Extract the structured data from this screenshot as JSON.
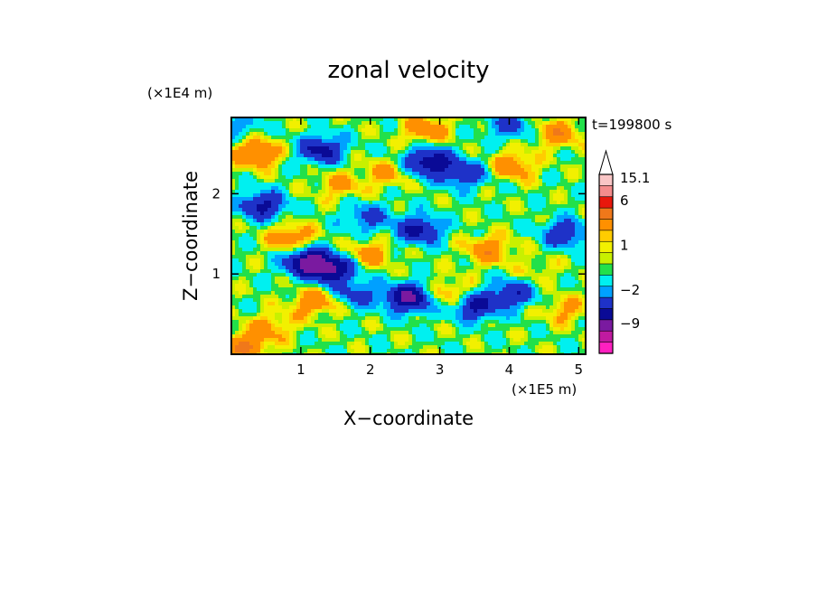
{
  "chart_data": {
    "type": "heatmap",
    "title": "zonal velocity",
    "xlabel": "X−coordinate",
    "ylabel": "Z−coordinate",
    "x_scale_label": "(×1E5 m)",
    "y_scale_label": "(×1E4 m)",
    "time_label": "t=199800 s",
    "x_range": [
      0,
      5.1
    ],
    "y_range": [
      0,
      2.95
    ],
    "x_ticks": [
      "1",
      "2",
      "3",
      "4",
      "5"
    ],
    "y_ticks": [
      "1",
      "2"
    ],
    "colorbar": {
      "tick_labels": [
        "15.1",
        "6",
        "1",
        "−2",
        "−9"
      ],
      "top_extend": "arrow",
      "levels": [
        {
          "value": 15.1,
          "color": "#f9c6c6"
        },
        {
          "value": 10,
          "color": "#f48c8c"
        },
        {
          "value": 6,
          "color": "#e8180c"
        },
        {
          "value": 4,
          "color": "#f0781a"
        },
        {
          "value": 2,
          "color": "#ff9000"
        },
        {
          "value": 1.5,
          "color": "#ffcc00"
        },
        {
          "value": 1,
          "color": "#f2f000"
        },
        {
          "value": 0.5,
          "color": "#c8f000"
        },
        {
          "value": 0,
          "color": "#22e04a"
        },
        {
          "value": -1,
          "color": "#00f0f0"
        },
        {
          "value": -2,
          "color": "#00a0ff"
        },
        {
          "value": -4,
          "color": "#1e32c8"
        },
        {
          "value": -6,
          "color": "#0a0a96"
        },
        {
          "value": -9,
          "color": "#7a1aa0"
        },
        {
          "value": -12,
          "color": "#c01aa0"
        },
        {
          "value": -15,
          "color": "#ff20c0"
        }
      ]
    },
    "field_blobs": [
      {
        "x": 1.1,
        "y": 1.15,
        "v": -7
      },
      {
        "x": 1.45,
        "y": 1.05,
        "v": -6
      },
      {
        "x": 2.85,
        "y": 2.4,
        "v": -6
      },
      {
        "x": 3.35,
        "y": 2.25,
        "v": -4
      },
      {
        "x": 2.55,
        "y": 0.7,
        "v": -7
      },
      {
        "x": 3.5,
        "y": 0.6,
        "v": -5
      },
      {
        "x": 4.05,
        "y": 0.75,
        "v": -4
      },
      {
        "x": 2.7,
        "y": 1.55,
        "v": -5
      },
      {
        "x": 1.3,
        "y": 2.55,
        "v": -5
      },
      {
        "x": 0.45,
        "y": 1.85,
        "v": -5
      },
      {
        "x": 4.8,
        "y": 1.5,
        "v": -4
      },
      {
        "x": 1.8,
        "y": 0.75,
        "v": -3
      },
      {
        "x": 4.0,
        "y": 2.85,
        "v": -3
      },
      {
        "x": 0.1,
        "y": 2.85,
        "v": -2
      },
      {
        "x": 1.95,
        "y": 1.7,
        "v": -3
      },
      {
        "x": 0.2,
        "y": 0.1,
        "v": 4
      },
      {
        "x": 0.35,
        "y": 2.5,
        "v": 4
      },
      {
        "x": 2.8,
        "y": 2.8,
        "v": 3
      },
      {
        "x": 3.15,
        "y": 0.75,
        "v": 2.5
      },
      {
        "x": 2.0,
        "y": 1.25,
        "v": 2.5
      },
      {
        "x": 1.2,
        "y": 0.65,
        "v": 3
      },
      {
        "x": 4.05,
        "y": 2.35,
        "v": 3
      },
      {
        "x": 4.7,
        "y": 2.75,
        "v": 3
      },
      {
        "x": 3.7,
        "y": 1.3,
        "v": 3
      },
      {
        "x": 1.55,
        "y": 2.1,
        "v": 2
      },
      {
        "x": 4.8,
        "y": 0.55,
        "v": 2
      },
      {
        "x": 0.6,
        "y": 0.35,
        "v": 2
      },
      {
        "x": 2.2,
        "y": 2.25,
        "v": 2
      },
      {
        "x": 0.85,
        "y": 1.45,
        "v": 3
      },
      {
        "x": 4.4,
        "y": 1.05,
        "v": 1
      }
    ]
  }
}
